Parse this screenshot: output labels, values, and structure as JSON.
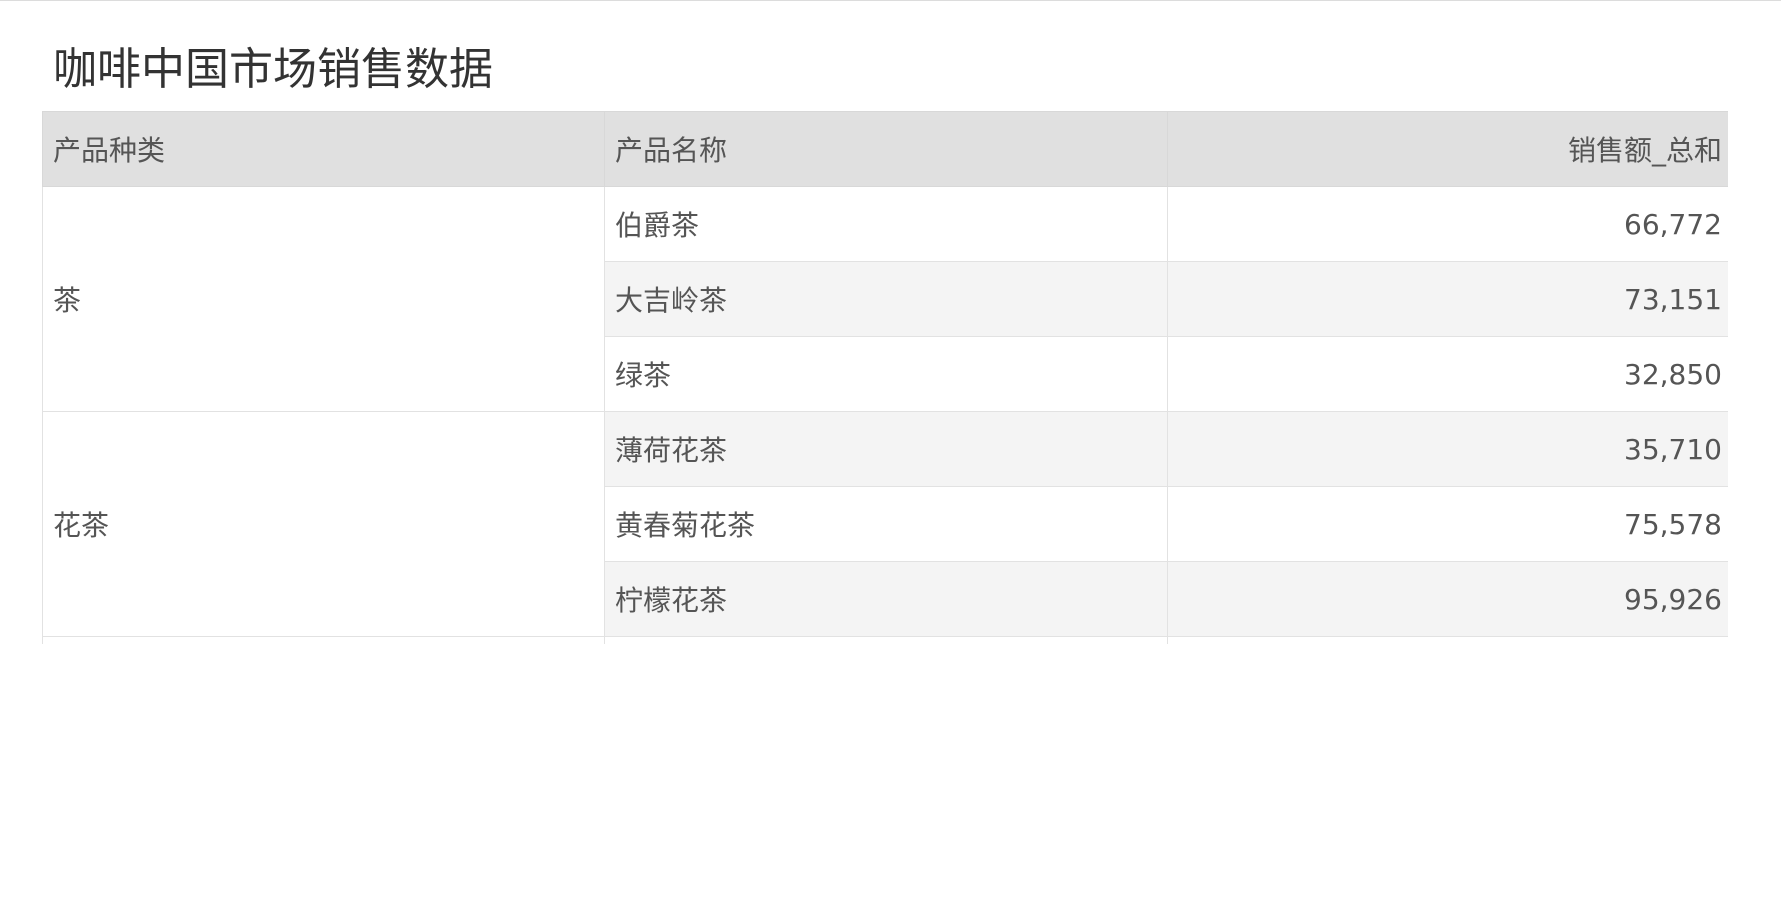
{
  "title": "咖啡中国市场销售数据",
  "table": {
    "headers": [
      "产品种类",
      "产品名称",
      "销售额_总和"
    ],
    "groups": [
      {
        "category": "茶",
        "rows": [
          {
            "name": "伯爵茶",
            "sales": "66,772"
          },
          {
            "name": "大吉岭茶",
            "sales": "73,151"
          },
          {
            "name": "绿茶",
            "sales": "32,850"
          }
        ]
      },
      {
        "category": "花茶",
        "rows": [
          {
            "name": "薄荷花茶",
            "sales": "35,710"
          },
          {
            "name": "黄春菊花茶",
            "sales": "75,578"
          },
          {
            "name": "柠檬花茶",
            "sales": "95,926"
          }
        ]
      }
    ]
  },
  "colors": {
    "header_bg": "#e0e0e0",
    "stripe_bg": "#f4f4f4",
    "border": "#e2e2e2"
  }
}
